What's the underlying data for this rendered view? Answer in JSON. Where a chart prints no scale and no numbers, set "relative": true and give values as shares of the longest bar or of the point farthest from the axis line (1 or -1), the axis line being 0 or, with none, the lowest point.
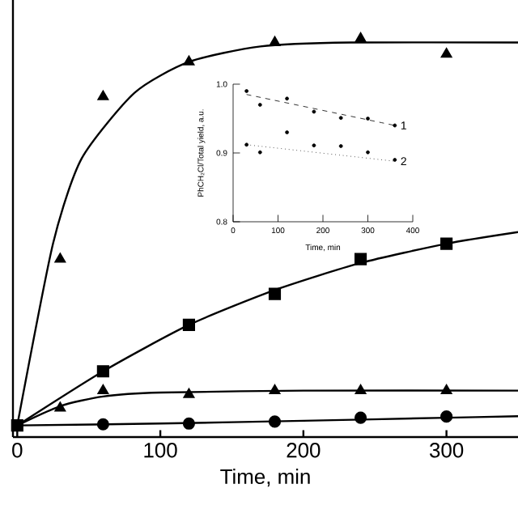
{
  "chart_data": [
    {
      "type": "scatter",
      "relative": true,
      "xlabel": "Time, min",
      "xlim": [
        -3,
        350
      ],
      "xticks": [
        0,
        100,
        200,
        300
      ],
      "tick_labels": "x",
      "series": [
        {
          "color": "#000000",
          "marker": "triangle",
          "x": [
            30,
            60,
            120,
            180,
            240,
            300
          ],
          "values": [
            0.43,
            0.85,
            0.94,
            0.99,
            1.0,
            0.96
          ]
        },
        {
          "color": "#000000",
          "marker": "square",
          "x": [
            0,
            60,
            120,
            180,
            240,
            300
          ],
          "values": [
            0,
            0.14,
            0.26,
            0.34,
            0.43,
            0.47
          ]
        },
        {
          "color": "#000000",
          "marker": "triangle",
          "x": [
            30,
            60,
            120,
            180,
            240,
            300
          ],
          "values": [
            0.045,
            0.09,
            0.08,
            0.09,
            0.09,
            0.09
          ]
        },
        {
          "color": "#000000",
          "marker": "circle",
          "x": [
            60,
            120,
            180,
            240,
            300
          ],
          "values": [
            0.003,
            0.005,
            0.01,
            0.02,
            0.023
          ]
        },
        {
          "type": "line",
          "color": "#000000",
          "x": [
            0,
            25,
            45,
            82,
            120,
            170,
            233,
            350
          ],
          "values": [
            0,
            0.47,
            0.69,
            0.86,
            0.94,
            0.98,
            0.99,
            0.99
          ]
        },
        {
          "type": "line",
          "color": "#000000",
          "x": [
            0,
            60,
            120,
            180,
            240,
            300,
            350
          ],
          "values": [
            0,
            0.14,
            0.26,
            0.35,
            0.42,
            0.47,
            0.5
          ]
        },
        {
          "type": "line",
          "color": "#000000",
          "x": [
            0,
            30,
            60,
            100,
            200,
            350
          ],
          "values": [
            0,
            0.05,
            0.075,
            0.085,
            0.09,
            0.09
          ]
        },
        {
          "type": "line",
          "color": "#000000",
          "x": [
            0,
            100,
            200,
            300,
            350
          ],
          "values": [
            0,
            0.005,
            0.012,
            0.02,
            0.024
          ]
        }
      ]
    },
    {
      "type": "scatter",
      "xlabel": "Time, min",
      "ylabel": "PhCH₂Cl/Total yield, a.u.",
      "xlim": [
        0,
        400
      ],
      "xticks": [
        0,
        100,
        200,
        300,
        400
      ],
      "ylim": [
        0.8,
        1.0
      ],
      "yticks": [
        0.8,
        0.9,
        {
          "value": 1.0,
          "label": "1.0"
        }
      ],
      "series": [
        {
          "color": "#000000",
          "marker": "circle",
          "x": [
            30,
            60,
            120,
            180,
            240,
            300,
            360
          ],
          "values": [
            0.99,
            0.97,
            0.979,
            0.96,
            0.951,
            0.95,
            0.94
          ]
        },
        {
          "color": "#000000",
          "marker": "circle",
          "x": [
            30,
            60,
            120,
            180,
            240,
            300,
            360
          ],
          "values": [
            0.912,
            0.901,
            0.93,
            0.911,
            0.91,
            0.901,
            0.89
          ]
        },
        {
          "type": "line",
          "name": "1",
          "color": "#000000",
          "line_style": "dashed",
          "x": [
            30,
            360
          ],
          "values": [
            0.985,
            0.94
          ]
        },
        {
          "type": "line",
          "name": "2",
          "color": "#000000",
          "line_style": "dotted",
          "x": [
            30,
            360
          ],
          "values": [
            0.912,
            0.888
          ]
        }
      ]
    }
  ]
}
